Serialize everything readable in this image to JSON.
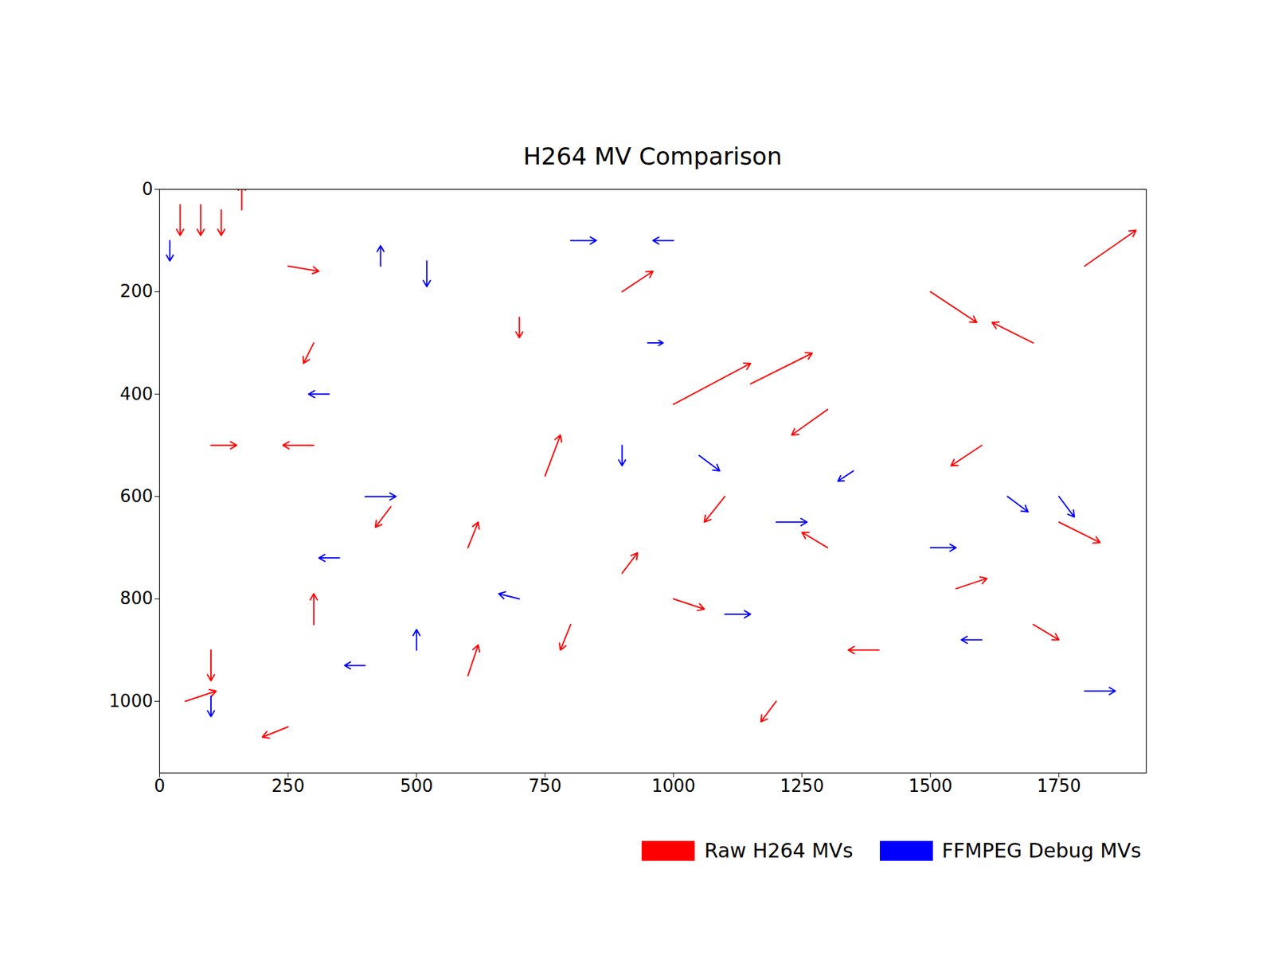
{
  "chart_data": {
    "type": "quiver",
    "title": "H264 MV Comparison",
    "xlim": [
      0,
      1920
    ],
    "ylim": [
      1140,
      0
    ],
    "xticks": [
      0,
      250,
      500,
      750,
      1000,
      1250,
      1500,
      1750
    ],
    "yticks": [
      0,
      200,
      400,
      600,
      800,
      1000
    ],
    "legend": "lower right",
    "series": [
      {
        "name": "Raw H264 MVs",
        "color": "#ff0000",
        "x": [
          40,
          80,
          120,
          160,
          250,
          300,
          100,
          300,
          600,
          700,
          900,
          1000,
          1150,
          1300,
          1500,
          1700,
          1800,
          1600,
          1750,
          1300,
          1100,
          900,
          800,
          300,
          100,
          50,
          250,
          1400,
          1700,
          600,
          1200,
          1000,
          750,
          450,
          1550
        ],
        "y": [
          30,
          30,
          40,
          40,
          150,
          300,
          500,
          500,
          700,
          250,
          200,
          420,
          380,
          430,
          200,
          300,
          150,
          500,
          650,
          700,
          600,
          750,
          850,
          850,
          900,
          1000,
          1050,
          900,
          850,
          950,
          1000,
          800,
          560,
          620,
          780
        ],
        "u": [
          0,
          0,
          0,
          0,
          60,
          -20,
          50,
          -60,
          20,
          0,
          60,
          150,
          120,
          -70,
          90,
          -80,
          100,
          -60,
          80,
          -50,
          -40,
          30,
          -20,
          0,
          0,
          60,
          -50,
          -60,
          50,
          20,
          -30,
          60,
          30,
          -30,
          60
        ],
        "v": [
          60,
          60,
          50,
          -50,
          10,
          40,
          0,
          0,
          -50,
          40,
          -40,
          -80,
          -60,
          50,
          60,
          -40,
          -70,
          40,
          40,
          -30,
          50,
          -40,
          50,
          -60,
          60,
          -20,
          20,
          0,
          30,
          -60,
          40,
          20,
          -80,
          40,
          -20
        ]
      },
      {
        "name": "FFMPEG Debug MVs",
        "color": "#0000ff",
        "x": [
          20,
          430,
          520,
          800,
          1000,
          330,
          400,
          900,
          1200,
          1650,
          1750,
          1500,
          700,
          500,
          400,
          1100,
          1600,
          100,
          1800,
          950,
          350,
          1350,
          1050
        ],
        "y": [
          100,
          150,
          140,
          100,
          100,
          400,
          600,
          500,
          650,
          600,
          600,
          700,
          800,
          900,
          930,
          830,
          880,
          990,
          980,
          300,
          720,
          550,
          520
        ],
        "u": [
          0,
          0,
          0,
          50,
          -40,
          -40,
          60,
          0,
          60,
          40,
          30,
          50,
          -40,
          0,
          -40,
          50,
          -40,
          0,
          60,
          30,
          -40,
          -30,
          40
        ],
        "v": [
          40,
          -40,
          50,
          0,
          0,
          0,
          0,
          40,
          0,
          30,
          40,
          0,
          -10,
          -40,
          0,
          0,
          0,
          40,
          0,
          0,
          0,
          20,
          30
        ]
      }
    ]
  }
}
